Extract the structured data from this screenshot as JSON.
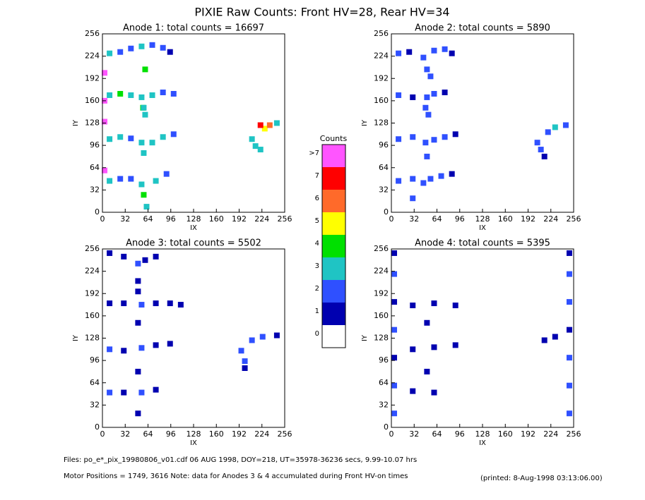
{
  "title": "PIXIE Raw Counts:  Front HV=28, Rear HV=34",
  "chart_data": [
    {
      "type": "scatter",
      "title": "Anode 1: total counts = 16697",
      "x_label": "IX",
      "y_label": "IY",
      "xlim": [
        0,
        256
      ],
      "ylim": [
        0,
        256
      ],
      "xticks": [
        0,
        32,
        64,
        96,
        128,
        160,
        192,
        224,
        256
      ],
      "yticks": [
        0,
        32,
        64,
        96,
        128,
        160,
        192,
        224,
        256
      ],
      "x": [
        10,
        25,
        40,
        55,
        60,
        70,
        85,
        95,
        57,
        60,
        10,
        25,
        40,
        55,
        58,
        70,
        85,
        100,
        10,
        25,
        40,
        55,
        58,
        70,
        85,
        100,
        10,
        25,
        40,
        55,
        58,
        62,
        75,
        90,
        210,
        215,
        222,
        228,
        235,
        245,
        222,
        3,
        3,
        3,
        3
      ],
      "y": [
        228,
        230,
        235,
        238,
        205,
        240,
        236,
        230,
        150,
        140,
        168,
        170,
        168,
        165,
        150,
        168,
        172,
        170,
        105,
        108,
        106,
        100,
        85,
        100,
        108,
        112,
        45,
        48,
        48,
        40,
        25,
        8,
        45,
        55,
        105,
        95,
        90,
        120,
        125,
        128,
        125,
        60,
        130,
        200,
        160
      ],
      "values": [
        3,
        2,
        2,
        3,
        4,
        2,
        2,
        1,
        4,
        3,
        3,
        4,
        3,
        3,
        3,
        3,
        2,
        2,
        3,
        3,
        2,
        3,
        3,
        3,
        3,
        2,
        3,
        2,
        2,
        3,
        4,
        3,
        3,
        2,
        3,
        3,
        3,
        5,
        6,
        3,
        7,
        8,
        8,
        8,
        8
      ]
    },
    {
      "type": "scatter",
      "title": "Anode 2: total counts = 5890",
      "x_label": "IX",
      "y_label": "IY",
      "xlim": [
        0,
        256
      ],
      "ylim": [
        0,
        256
      ],
      "xticks": [
        0,
        32,
        64,
        96,
        128,
        160,
        192,
        224,
        256
      ],
      "yticks": [
        0,
        32,
        64,
        96,
        128,
        160,
        192,
        224,
        256
      ],
      "x": [
        10,
        25,
        45,
        60,
        75,
        85,
        50,
        55,
        10,
        30,
        50,
        60,
        75,
        48,
        52,
        10,
        30,
        48,
        60,
        75,
        90,
        50,
        10,
        30,
        45,
        55,
        70,
        85,
        30,
        205,
        210,
        220,
        230,
        245,
        215
      ],
      "y": [
        228,
        230,
        222,
        232,
        234,
        228,
        205,
        195,
        168,
        165,
        165,
        170,
        172,
        150,
        140,
        105,
        108,
        100,
        104,
        108,
        112,
        80,
        45,
        48,
        42,
        48,
        52,
        55,
        20,
        100,
        90,
        115,
        122,
        125,
        80
      ],
      "values": [
        2,
        1,
        2,
        2,
        2,
        1,
        2,
        2,
        2,
        1,
        2,
        2,
        1,
        2,
        2,
        2,
        2,
        2,
        2,
        2,
        1,
        2,
        2,
        2,
        2,
        2,
        2,
        1,
        2,
        2,
        2,
        2,
        3,
        2,
        1
      ]
    },
    {
      "type": "scatter",
      "title": "Anode 3: total counts = 5502",
      "x_label": "IX",
      "y_label": "IY",
      "xlim": [
        0,
        256
      ],
      "ylim": [
        0,
        256
      ],
      "xticks": [
        0,
        32,
        64,
        96,
        128,
        160,
        192,
        224,
        256
      ],
      "yticks": [
        0,
        32,
        64,
        96,
        128,
        160,
        192,
        224,
        256
      ],
      "x": [
        10,
        30,
        50,
        60,
        75,
        50,
        50,
        10,
        30,
        55,
        75,
        95,
        110,
        50,
        10,
        30,
        55,
        75,
        95,
        50,
        10,
        30,
        55,
        75,
        50,
        195,
        200,
        210,
        225,
        245,
        200
      ],
      "y": [
        250,
        245,
        235,
        240,
        245,
        210,
        195,
        178,
        178,
        176,
        178,
        178,
        176,
        150,
        112,
        110,
        114,
        118,
        120,
        80,
        50,
        50,
        50,
        54,
        20,
        110,
        95,
        125,
        130,
        132,
        85
      ],
      "values": [
        1,
        1,
        2,
        1,
        1,
        1,
        1,
        1,
        1,
        2,
        1,
        1,
        1,
        1,
        2,
        1,
        2,
        1,
        1,
        1,
        2,
        1,
        2,
        1,
        1,
        2,
        2,
        2,
        2,
        1,
        1
      ]
    },
    {
      "type": "scatter",
      "title": "Anode 4: total counts = 5395",
      "x_label": "IX",
      "y_label": "IY",
      "xlim": [
        0,
        256
      ],
      "ylim": [
        0,
        256
      ],
      "xticks": [
        0,
        32,
        64,
        96,
        128,
        160,
        192,
        224,
        256
      ],
      "yticks": [
        0,
        32,
        64,
        96,
        128,
        160,
        192,
        224,
        256
      ],
      "x": [
        4,
        4,
        4,
        4,
        4,
        4,
        4,
        250,
        250,
        250,
        250,
        250,
        250,
        250,
        30,
        60,
        90,
        30,
        60,
        90,
        30,
        60,
        215,
        230,
        50,
        50
      ],
      "y": [
        20,
        60,
        100,
        140,
        180,
        220,
        250,
        20,
        60,
        100,
        140,
        180,
        220,
        250,
        175,
        178,
        175,
        112,
        115,
        118,
        52,
        50,
        125,
        130,
        150,
        80
      ],
      "values": [
        2,
        2,
        1,
        2,
        1,
        2,
        1,
        2,
        2,
        2,
        1,
        2,
        2,
        1,
        1,
        1,
        1,
        1,
        1,
        1,
        1,
        1,
        1,
        1,
        1,
        1
      ]
    }
  ],
  "colorbar": {
    "title": "Counts",
    "levels": [
      0,
      1,
      2,
      3,
      4,
      5,
      6,
      7,
      {
        "value": 8,
        "label": ">7"
      }
    ],
    "colors": [
      "#ffffff",
      "#0000b0",
      "#2f50ff",
      "#1fc4c4",
      "#00e000",
      "#ffff00",
      "#ff6a2a",
      "#ff0000",
      "#ff55ff"
    ]
  },
  "footer": [
    "Files: po_e*_pix_19980806_v01.cdf    06 AUG 1998, DOY=218, UT=35978-36236 secs,  9.99-10.07 hrs",
    "Motor Positions = 1749, 3616   Note: data for Anodes 3 & 4 accumulated during Front HV-on times"
  ],
  "printed": "(printed:  8-Aug-1998 03:13:06.00)"
}
